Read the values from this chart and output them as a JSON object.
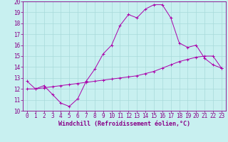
{
  "title": "Windchill (Refroidissement éolien,°C)",
  "line1_x": [
    0,
    1,
    2,
    3,
    4,
    5,
    6,
    7,
    8,
    9,
    10,
    11,
    12,
    13,
    14,
    15,
    16,
    17,
    18,
    19,
    20,
    21,
    22,
    23
  ],
  "line1_y": [
    12.7,
    12.0,
    12.3,
    11.5,
    10.7,
    10.4,
    11.1,
    12.7,
    13.8,
    15.2,
    16.0,
    17.8,
    18.8,
    18.5,
    19.3,
    19.7,
    19.7,
    18.5,
    16.2,
    15.8,
    16.0,
    14.8,
    14.2,
    13.9
  ],
  "line2_x": [
    0,
    1,
    2,
    3,
    4,
    5,
    6,
    7,
    8,
    9,
    10,
    11,
    12,
    13,
    14,
    15,
    16,
    17,
    18,
    19,
    20,
    21,
    22,
    23
  ],
  "line2_y": [
    12.0,
    12.0,
    12.1,
    12.2,
    12.3,
    12.4,
    12.5,
    12.6,
    12.7,
    12.8,
    12.9,
    13.0,
    13.1,
    13.2,
    13.4,
    13.6,
    13.9,
    14.2,
    14.5,
    14.7,
    14.9,
    15.0,
    15.0,
    13.9
  ],
  "line_color": "#aa00aa",
  "bg_color": "#c8f0f0",
  "grid_color": "#a8dada",
  "text_color": "#880088",
  "xlim_min": -0.5,
  "xlim_max": 23.5,
  "ylim_min": 10,
  "ylim_max": 20,
  "xticks": [
    0,
    1,
    2,
    3,
    4,
    5,
    6,
    7,
    8,
    9,
    10,
    11,
    12,
    13,
    14,
    15,
    16,
    17,
    18,
    19,
    20,
    21,
    22,
    23
  ],
  "yticks": [
    10,
    11,
    12,
    13,
    14,
    15,
    16,
    17,
    18,
    19,
    20
  ],
  "tick_fontsize": 5.5,
  "label_fontsize": 6.0
}
